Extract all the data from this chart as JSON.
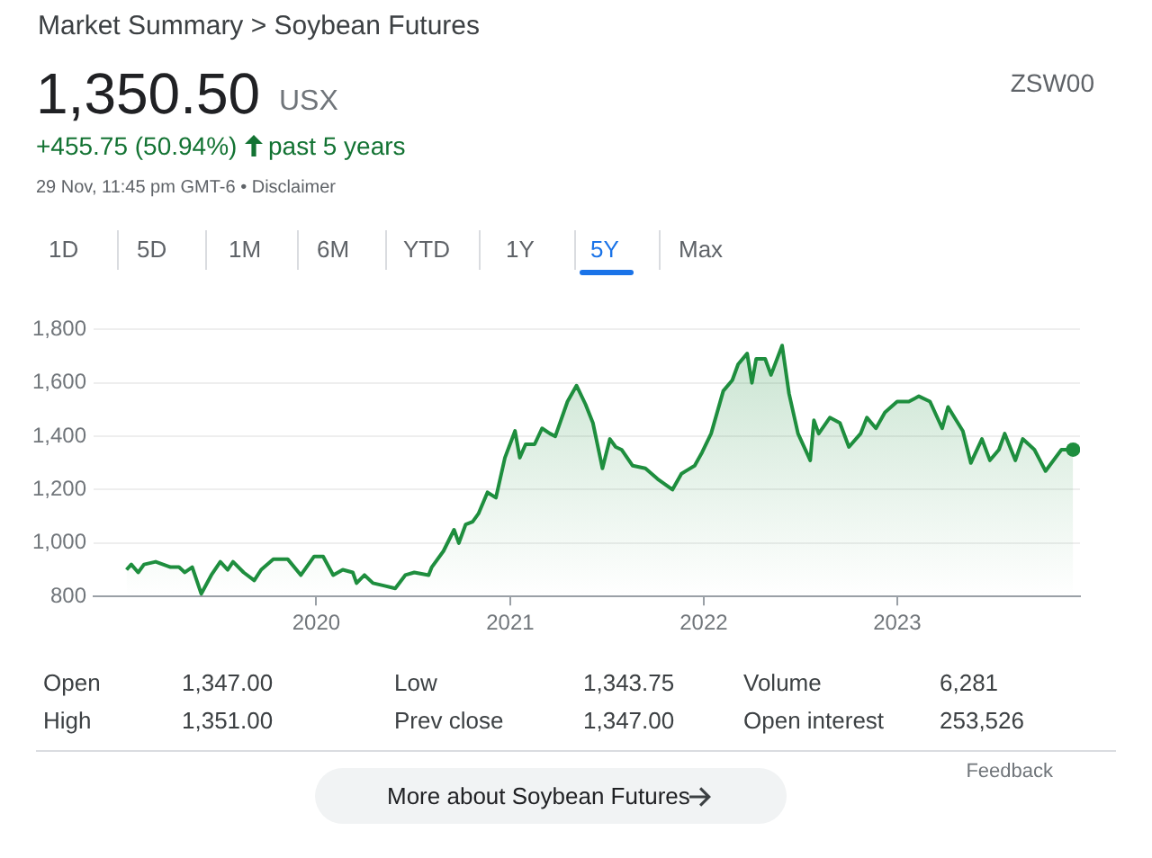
{
  "chart_data": {
    "type": "area",
    "title": "Market Summary > Soybean Futures",
    "x": [
      "2019-01-08",
      "2019-01-17",
      "2019-01-30",
      "2019-02-10",
      "2019-03-04",
      "2019-04-01",
      "2019-04-17",
      "2019-04-28",
      "2019-05-12",
      "2019-05-29",
      "2019-06-17",
      "2019-07-04",
      "2019-07-18",
      "2019-07-28",
      "2019-08-17",
      "2019-09-06",
      "2019-09-19",
      "2019-10-12",
      "2019-11-08",
      "2019-12-03",
      "2019-12-28",
      "2020-01-14",
      "2020-02-02",
      "2020-02-20",
      "2020-03-10",
      "2020-03-17",
      "2020-04-01",
      "2020-04-17",
      "2020-05-09",
      "2020-05-29",
      "2020-06-17",
      "2020-07-04",
      "2020-07-31",
      "2020-08-06",
      "2020-08-28",
      "2020-09-17",
      "2020-09-26",
      "2020-10-09",
      "2020-10-22",
      "2020-11-02",
      "2020-11-19",
      "2020-12-05",
      "2020-12-22",
      "2021-01-10",
      "2021-01-19",
      "2021-01-30",
      "2021-02-16",
      "2021-03-02",
      "2021-03-17",
      "2021-03-27",
      "2021-04-19",
      "2021-05-06",
      "2021-05-23",
      "2021-06-06",
      "2021-06-24",
      "2021-07-08",
      "2021-07-19",
      "2021-07-30",
      "2021-08-20",
      "2021-09-13",
      "2021-10-06",
      "2021-11-03",
      "2021-11-20",
      "2021-12-15",
      "2021-12-29",
      "2022-01-15",
      "2022-02-07",
      "2022-02-24",
      "2022-03-07",
      "2022-03-24",
      "2022-04-02",
      "2022-04-10",
      "2022-04-27",
      "2022-05-08",
      "2022-05-29",
      "2022-06-11",
      "2022-06-28",
      "2022-07-21",
      "2022-07-28",
      "2022-08-06",
      "2022-08-27",
      "2022-09-15",
      "2022-10-02",
      "2022-10-24",
      "2022-11-05",
      "2022-11-22",
      "2022-12-09",
      "2023-01-01",
      "2023-01-23",
      "2023-02-11",
      "2023-03-04",
      "2023-03-27",
      "2023-04-07",
      "2023-05-05",
      "2023-05-20",
      "2023-06-10",
      "2023-06-25",
      "2023-07-12",
      "2023-07-23",
      "2023-08-12",
      "2023-08-26",
      "2023-09-17",
      "2023-10-08",
      "2023-11-07",
      "2023-11-29"
    ],
    "series": [
      {
        "color": "#1e8e3e",
        "values": [
          900,
          920,
          890,
          920,
          930,
          910,
          910,
          890,
          910,
          810,
          880,
          930,
          900,
          930,
          890,
          860,
          900,
          940,
          940,
          880,
          950,
          950,
          880,
          900,
          890,
          850,
          880,
          850,
          840,
          830,
          880,
          890,
          880,
          910,
          970,
          1050,
          1000,
          1070,
          1080,
          1110,
          1190,
          1170,
          1320,
          1420,
          1320,
          1370,
          1370,
          1430,
          1410,
          1400,
          1530,
          1590,
          1520,
          1450,
          1280,
          1390,
          1360,
          1350,
          1290,
          1280,
          1240,
          1200,
          1260,
          1290,
          1340,
          1410,
          1570,
          1610,
          1670,
          1710,
          1600,
          1690,
          1690,
          1630,
          1740,
          1560,
          1410,
          1310,
          1460,
          1410,
          1470,
          1450,
          1360,
          1410,
          1470,
          1430,
          1490,
          1530,
          1530,
          1550,
          1530,
          1430,
          1510,
          1420,
          1300,
          1390,
          1310,
          1350,
          1410,
          1310,
          1390,
          1350,
          1270,
          1350,
          1350
        ]
      }
    ],
    "xlim": [
      "2018-11-07",
      "2023-12-12"
    ],
    "xticks": [
      {
        "value": "2020-01-01",
        "label": "2020"
      },
      {
        "value": "2021-01-01",
        "label": "2021"
      },
      {
        "value": "2022-01-01",
        "label": "2022"
      },
      {
        "value": "2023-01-01",
        "label": "2023"
      }
    ],
    "ylim": [
      800,
      1800
    ],
    "yticks": [
      {
        "value": 800,
        "label": "800"
      },
      {
        "value": 1000,
        "label": "1,000"
      },
      {
        "value": 1200,
        "label": "1,200"
      },
      {
        "value": 1400,
        "label": "1,400"
      },
      {
        "value": 1600,
        "label": "1,600"
      },
      {
        "value": 1800,
        "label": "1,800"
      }
    ],
    "grid": "y",
    "annotations": [
      "1,350.50",
      "USX",
      "ZSW00",
      "+455.75 (50.94%)",
      "past 5 years",
      "29 Nov, 11:45 pm GMT-6 • Disclaimer",
      "1D",
      "5D",
      "1M",
      "6M",
      "YTD",
      "1Y",
      "5Y",
      "Max",
      "Open",
      "1,347.00",
      "Low",
      "1,343.75",
      "Volume",
      "6,281",
      "High",
      "1,351.00",
      "Prev close",
      "1,347.00",
      "Open interest",
      "253,526",
      "Feedback",
      "More about Soybean Futures"
    ]
  }
}
